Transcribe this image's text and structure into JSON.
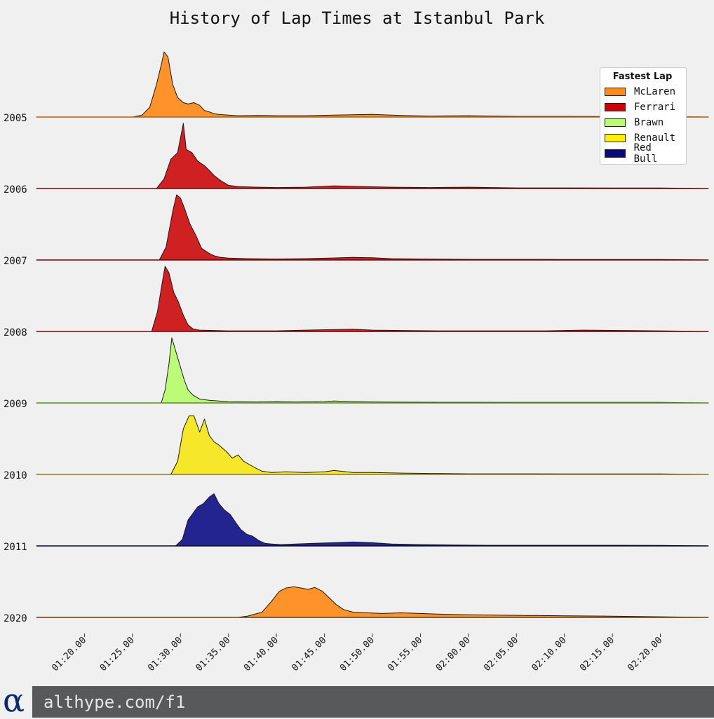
{
  "chart_data": {
    "type": "area",
    "title": "History of Lap Times at Istanbul Park",
    "subtitle": "",
    "xlabel": "",
    "ylabel": "",
    "x_range": [
      "01:15.00",
      "02:25.00"
    ],
    "x_ticks": [
      "01:20.00",
      "01:25.00",
      "01:30.00",
      "01:35.00",
      "01:40.00",
      "01:45.00",
      "01:50.00",
      "01:55.00",
      "02:00.00",
      "02:05.00",
      "02:10.00",
      "02:15.00",
      "02:20.00"
    ],
    "legend": {
      "title": "Fastest Lap",
      "position": "top-right",
      "entries": [
        {
          "name": "McLaren",
          "color": "#ff8b1c"
        },
        {
          "name": "Ferrari",
          "color": "#cc0000"
        },
        {
          "name": "Brawn",
          "color": "#b8fc6f"
        },
        {
          "name": "Renault",
          "color": "#fff000"
        },
        {
          "name": "Red Bull",
          "color": "#0a0a7a"
        }
      ]
    },
    "series": [
      {
        "year": "2005",
        "team": "McLaren",
        "color": "#ff8b1c",
        "line": "#b06010",
        "points": [
          [
            85.0,
            0
          ],
          [
            86.0,
            0.03
          ],
          [
            86.8,
            0.15
          ],
          [
            87.5,
            0.5
          ],
          [
            88.0,
            0.8
          ],
          [
            88.3,
            1.0
          ],
          [
            88.7,
            0.92
          ],
          [
            89.2,
            0.5
          ],
          [
            89.7,
            0.3
          ],
          [
            90.3,
            0.22
          ],
          [
            90.8,
            0.2
          ],
          [
            91.4,
            0.22
          ],
          [
            92.0,
            0.18
          ],
          [
            92.5,
            0.1
          ],
          [
            93.0,
            0.08
          ],
          [
            93.5,
            0.05
          ],
          [
            94.0,
            0.04
          ],
          [
            95.0,
            0.03
          ],
          [
            96.0,
            0.02
          ],
          [
            98.0,
            0.025
          ],
          [
            100.0,
            0.02
          ],
          [
            103.0,
            0.02
          ],
          [
            106.0,
            0.03
          ],
          [
            110.0,
            0.04
          ],
          [
            113.0,
            0.025
          ],
          [
            116.0,
            0.015
          ],
          [
            120.0,
            0.02
          ],
          [
            125.0,
            0.01
          ],
          [
            130.0,
            0.01
          ],
          [
            135.0,
            0.008
          ],
          [
            140.0,
            0.008
          ]
        ]
      },
      {
        "year": "2006",
        "team": "Ferrari",
        "color": "#cc1111",
        "line": "#7a0000",
        "points": [
          [
            87.5,
            0
          ],
          [
            88.3,
            0.15
          ],
          [
            89.0,
            0.45
          ],
          [
            89.7,
            0.55
          ],
          [
            90.3,
            1.0
          ],
          [
            90.6,
            0.6
          ],
          [
            91.2,
            0.55
          ],
          [
            91.8,
            0.42
          ],
          [
            92.5,
            0.35
          ],
          [
            93.0,
            0.28
          ],
          [
            93.5,
            0.2
          ],
          [
            94.2,
            0.12
          ],
          [
            95.0,
            0.05
          ],
          [
            96.0,
            0.03
          ],
          [
            98.0,
            0.02
          ],
          [
            100.0,
            0.015
          ],
          [
            103.0,
            0.02
          ],
          [
            106.0,
            0.04
          ],
          [
            109.0,
            0.03
          ],
          [
            112.0,
            0.02
          ],
          [
            116.0,
            0.015
          ],
          [
            120.0,
            0.02
          ],
          [
            125.0,
            0.01
          ],
          [
            130.0,
            0.01
          ],
          [
            135.0,
            0.008
          ],
          [
            140.0,
            0.008
          ]
        ]
      },
      {
        "year": "2007",
        "team": "Ferrari",
        "color": "#cc1111",
        "line": "#7a0000",
        "points": [
          [
            87.8,
            0
          ],
          [
            88.5,
            0.2
          ],
          [
            89.2,
            0.75
          ],
          [
            89.6,
            1.0
          ],
          [
            90.0,
            0.95
          ],
          [
            90.4,
            0.8
          ],
          [
            91.0,
            0.55
          ],
          [
            91.6,
            0.38
          ],
          [
            92.2,
            0.18
          ],
          [
            93.0,
            0.1
          ],
          [
            93.6,
            0.06
          ],
          [
            94.2,
            0.04
          ],
          [
            95.0,
            0.03
          ],
          [
            97.0,
            0.02
          ],
          [
            100.0,
            0.015
          ],
          [
            103.0,
            0.02
          ],
          [
            105.5,
            0.03
          ],
          [
            108.0,
            0.04
          ],
          [
            110.0,
            0.035
          ],
          [
            112.0,
            0.02
          ],
          [
            115.0,
            0.015
          ],
          [
            120.0,
            0.01
          ],
          [
            125.0,
            0.01
          ],
          [
            130.0,
            0.008
          ],
          [
            140.0,
            0.008
          ]
        ]
      },
      {
        "year": "2008",
        "team": "Ferrari",
        "color": "#cc1111",
        "line": "#7a0000",
        "points": [
          [
            87.0,
            0
          ],
          [
            87.6,
            0.3
          ],
          [
            88.1,
            0.75
          ],
          [
            88.4,
            1.0
          ],
          [
            88.8,
            0.9
          ],
          [
            89.3,
            0.6
          ],
          [
            89.8,
            0.45
          ],
          [
            90.3,
            0.25
          ],
          [
            90.8,
            0.1
          ],
          [
            91.3,
            0.04
          ],
          [
            92.0,
            0.02
          ],
          [
            95.0,
            0.01
          ],
          [
            100.0,
            0.01
          ],
          [
            103.0,
            0.02
          ],
          [
            106.0,
            0.03
          ],
          [
            108.0,
            0.035
          ],
          [
            110.0,
            0.02
          ],
          [
            113.0,
            0.015
          ],
          [
            117.0,
            0.01
          ],
          [
            122.0,
            0.01
          ],
          [
            128.0,
            0.01
          ],
          [
            132.0,
            0.02
          ],
          [
            136.0,
            0.015
          ],
          [
            140.0,
            0.01
          ]
        ]
      },
      {
        "year": "2009",
        "team": "Brawn",
        "color": "#b8fc6f",
        "line": "#5a8a20",
        "points": [
          [
            88.0,
            0
          ],
          [
            88.4,
            0.2
          ],
          [
            88.8,
            0.6
          ],
          [
            89.1,
            1.0
          ],
          [
            89.5,
            0.8
          ],
          [
            90.0,
            0.55
          ],
          [
            90.4,
            0.35
          ],
          [
            90.8,
            0.2
          ],
          [
            91.3,
            0.12
          ],
          [
            92.0,
            0.06
          ],
          [
            93.0,
            0.04
          ],
          [
            94.0,
            0.03
          ],
          [
            95.0,
            0.02
          ],
          [
            98.0,
            0.015
          ],
          [
            100.0,
            0.02
          ],
          [
            102.0,
            0.015
          ],
          [
            105.0,
            0.02
          ],
          [
            106.0,
            0.03
          ],
          [
            108.0,
            0.02
          ],
          [
            110.0,
            0.015
          ],
          [
            113.0,
            0.012
          ],
          [
            117.0,
            0.01
          ],
          [
            120.0,
            0.01
          ],
          [
            125.0,
            0.008
          ],
          [
            130.0,
            0.008
          ],
          [
            140.0,
            0.008
          ]
        ]
      },
      {
        "year": "2010",
        "team": "Renault",
        "color": "#f8e61c",
        "line": "#8a7a10",
        "points": [
          [
            89.0,
            0
          ],
          [
            89.7,
            0.2
          ],
          [
            90.3,
            0.7
          ],
          [
            90.9,
            0.9
          ],
          [
            91.4,
            0.9
          ],
          [
            92.0,
            0.65
          ],
          [
            92.5,
            0.85
          ],
          [
            93.0,
            0.6
          ],
          [
            93.5,
            0.5
          ],
          [
            94.0,
            0.45
          ],
          [
            94.8,
            0.35
          ],
          [
            95.4,
            0.25
          ],
          [
            96.0,
            0.3
          ],
          [
            96.6,
            0.2
          ],
          [
            97.2,
            0.15
          ],
          [
            97.8,
            0.1
          ],
          [
            98.5,
            0.05
          ],
          [
            99.5,
            0.03
          ],
          [
            101.0,
            0.04
          ],
          [
            103.0,
            0.03
          ],
          [
            105.0,
            0.04
          ],
          [
            106.0,
            0.06
          ],
          [
            108.0,
            0.03
          ],
          [
            110.0,
            0.03
          ],
          [
            113.0,
            0.02
          ],
          [
            116.0,
            0.015
          ],
          [
            120.0,
            0.01
          ],
          [
            125.0,
            0.01
          ],
          [
            130.0,
            0.008
          ],
          [
            140.0,
            0.008
          ]
        ]
      },
      {
        "year": "2011",
        "team": "Red Bull",
        "color": "#14148a",
        "line": "#050530",
        "points": [
          [
            89.5,
            0
          ],
          [
            90.2,
            0.1
          ],
          [
            90.8,
            0.4
          ],
          [
            91.3,
            0.5
          ],
          [
            91.8,
            0.6
          ],
          [
            92.4,
            0.65
          ],
          [
            93.0,
            0.75
          ],
          [
            93.5,
            0.8
          ],
          [
            94.0,
            0.65
          ],
          [
            94.6,
            0.55
          ],
          [
            95.2,
            0.48
          ],
          [
            95.8,
            0.35
          ],
          [
            96.3,
            0.25
          ],
          [
            96.9,
            0.18
          ],
          [
            97.5,
            0.15
          ],
          [
            98.2,
            0.08
          ],
          [
            98.8,
            0.04
          ],
          [
            99.5,
            0.03
          ],
          [
            100.5,
            0.02
          ],
          [
            102.0,
            0.03
          ],
          [
            104.0,
            0.04
          ],
          [
            106.0,
            0.05
          ],
          [
            108.0,
            0.06
          ],
          [
            110.0,
            0.05
          ],
          [
            112.0,
            0.03
          ],
          [
            115.0,
            0.02
          ],
          [
            118.0,
            0.015
          ],
          [
            122.0,
            0.01
          ],
          [
            128.0,
            0.01
          ],
          [
            134.0,
            0.01
          ],
          [
            140.0,
            0.008
          ]
        ]
      },
      {
        "year": "2020",
        "team": "McLaren",
        "color": "#ff8b1c",
        "line": "#6a3a00",
        "points": [
          [
            96.0,
            0
          ],
          [
            97.0,
            0.02
          ],
          [
            98.5,
            0.08
          ],
          [
            99.5,
            0.25
          ],
          [
            100.3,
            0.4
          ],
          [
            101.0,
            0.45
          ],
          [
            101.8,
            0.47
          ],
          [
            102.6,
            0.45
          ],
          [
            103.3,
            0.43
          ],
          [
            104.0,
            0.46
          ],
          [
            104.8,
            0.4
          ],
          [
            105.5,
            0.3
          ],
          [
            106.2,
            0.2
          ],
          [
            107.0,
            0.12
          ],
          [
            108.0,
            0.08
          ],
          [
            109.5,
            0.07
          ],
          [
            111.0,
            0.06
          ],
          [
            113.0,
            0.07
          ],
          [
            115.0,
            0.06
          ],
          [
            117.0,
            0.05
          ],
          [
            120.0,
            0.04
          ],
          [
            123.0,
            0.035
          ],
          [
            126.0,
            0.03
          ],
          [
            130.0,
            0.025
          ],
          [
            134.0,
            0.02
          ],
          [
            137.0,
            0.015
          ],
          [
            140.0,
            0.01
          ]
        ]
      }
    ]
  },
  "footer": {
    "logo_glyph": "α",
    "url": "althype.com/f1"
  }
}
